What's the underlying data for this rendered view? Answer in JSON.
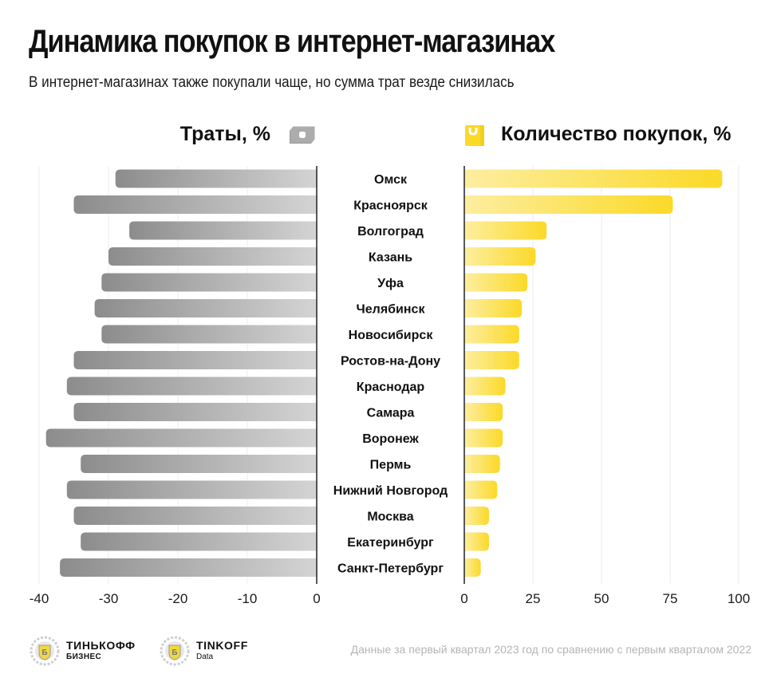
{
  "header": {
    "title": "Динамика покупок в интернет-магазинах",
    "subtitle": "В интернет-магазинах также покупали чаще, но сумма трат везде снизилась"
  },
  "colors": {
    "spend_dark": "#8c8c8c",
    "spend_light": "#d4d4d4",
    "count_light": "#fdeea0",
    "count_dark": "#fbd928",
    "axis": "#222222",
    "grid": "#eeeeee"
  },
  "chart_data": {
    "type": "bar",
    "orientation": "horizontal",
    "title": "Динамика покупок в интернет-магазинах",
    "categories": [
      "Омск",
      "Красноярск",
      "Волгоград",
      "Казань",
      "Уфа",
      "Челябинск",
      "Новосибирск",
      "Ростов-на-Дону",
      "Краснодар",
      "Самара",
      "Воронеж",
      "Пермь",
      "Нижний Новгород",
      "Москва",
      "Екатеринбург",
      "Санкт-Петербург"
    ],
    "series": [
      {
        "name": "Траты, %",
        "icon": "wallet-icon",
        "values": [
          -29,
          -35,
          -27,
          -30,
          -31,
          -32,
          -31,
          -35,
          -36,
          -35,
          -39,
          -34,
          -36,
          -35,
          -34,
          -37
        ],
        "xlim": [
          -40,
          0
        ],
        "ticks": [
          "-40",
          "-30",
          "-20",
          "-10",
          "0"
        ],
        "tick_values": [
          -40,
          -30,
          -20,
          -10,
          0
        ]
      },
      {
        "name": "Количество покупок, %",
        "icon": "shopping-bag-icon",
        "values": [
          94,
          76,
          30,
          26,
          23,
          21,
          20,
          20,
          15,
          14,
          14,
          13,
          12,
          9,
          9,
          6
        ],
        "xlim": [
          0,
          100
        ],
        "ticks": [
          "0",
          "25",
          "50",
          "75",
          "100"
        ],
        "tick_values": [
          0,
          25,
          50,
          75,
          100
        ]
      }
    ],
    "grid": true,
    "legend": "top"
  },
  "footer": {
    "logos": [
      {
        "name": "ТИНЬКОФФ",
        "sub": "БИЗНЕС"
      },
      {
        "name": "TINKOFF",
        "sub": "Data"
      }
    ],
    "source": "Данные за первый квартал 2023 год по сравнению с первым кварталом 2022"
  }
}
